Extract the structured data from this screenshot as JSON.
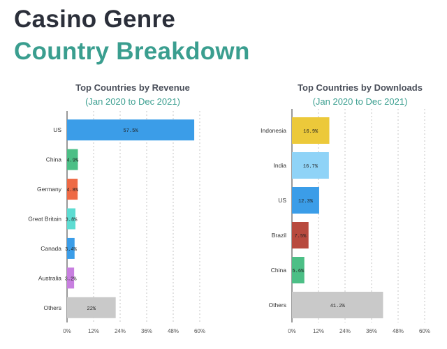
{
  "header": {
    "title_line1": "Casino Genre",
    "title_line2": "Country Breakdown"
  },
  "colors": {
    "accent": "#3a9e8f",
    "title_dark": "#2b2f3a"
  },
  "chart_data": [
    {
      "type": "bar",
      "orientation": "horizontal",
      "title": "Top Countries by Revenue",
      "subtitle": "(Jan 2020 to Dec 2021)",
      "categories": [
        "US",
        "China",
        "Germany",
        "Great Britain",
        "Canada",
        "Australia",
        "Others"
      ],
      "values": [
        57.5,
        4.9,
        4.8,
        3.8,
        3.4,
        3.2,
        22
      ],
      "value_labels": [
        "57.5%",
        "4.9%",
        "4.8%",
        "3.8%",
        "3.4%",
        "3.2%",
        "22%"
      ],
      "colors": [
        "#3b9de8",
        "#4cbf86",
        "#ee6a45",
        "#5ddcd2",
        "#3b9de8",
        "#c87fe0",
        "#c9c9c9"
      ],
      "xlim": [
        0,
        60
      ],
      "xticks": [
        "0%",
        "12%",
        "24%",
        "36%",
        "48%",
        "60%"
      ],
      "grid": true
    },
    {
      "type": "bar",
      "orientation": "horizontal",
      "title": "Top Countries by Downloads",
      "subtitle": "(Jan 2020 to Dec 2021)",
      "categories": [
        "Indonesia",
        "India",
        "US",
        "Brazil",
        "China",
        "Others"
      ],
      "values": [
        16.9,
        16.7,
        12.3,
        7.5,
        5.6,
        41.2
      ],
      "value_labels": [
        "16.9%",
        "16.7%",
        "12.3%",
        "7.5%",
        "5.6%",
        "41.2%"
      ],
      "colors": [
        "#ecc93a",
        "#8fd3f7",
        "#3b9de8",
        "#b84a3e",
        "#4cbf86",
        "#c9c9c9"
      ],
      "xlim": [
        0,
        60
      ],
      "xticks": [
        "0%",
        "12%",
        "24%",
        "36%",
        "48%",
        "60%"
      ],
      "grid": true
    }
  ]
}
